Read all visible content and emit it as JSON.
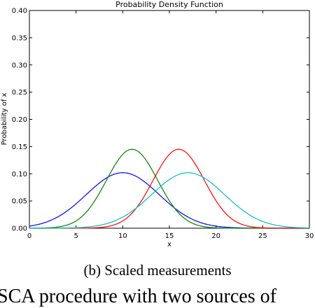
{
  "chart_data": {
    "type": "line",
    "title": "Probability Density Function",
    "xlabel": "x",
    "ylabel": "Probability of x",
    "xlim": [
      0,
      30
    ],
    "ylim": [
      0,
      0.4
    ],
    "xticks": [
      "0",
      "5",
      "10",
      "15",
      "20",
      "25",
      "30"
    ],
    "yticks": [
      "0.00",
      "0.05",
      "0.10",
      "0.15",
      "0.20",
      "0.25",
      "0.30",
      "0.35",
      "0.40"
    ],
    "grid": false,
    "series": [
      {
        "color": "#0000ff",
        "mean": 10,
        "sd": 3.9,
        "peak": 0.102
      },
      {
        "color": "#008000",
        "mean": 11,
        "sd": 2.75,
        "peak": 0.145
      },
      {
        "color": "#ff0000",
        "mean": 16,
        "sd": 2.75,
        "peak": 0.145
      },
      {
        "color": "#00bfbf",
        "mean": 17,
        "sd": 3.9,
        "peak": 0.102
      }
    ]
  },
  "caption": "(b) Scaled measurements",
  "bottom_text": "SCA procedure with two sources of"
}
